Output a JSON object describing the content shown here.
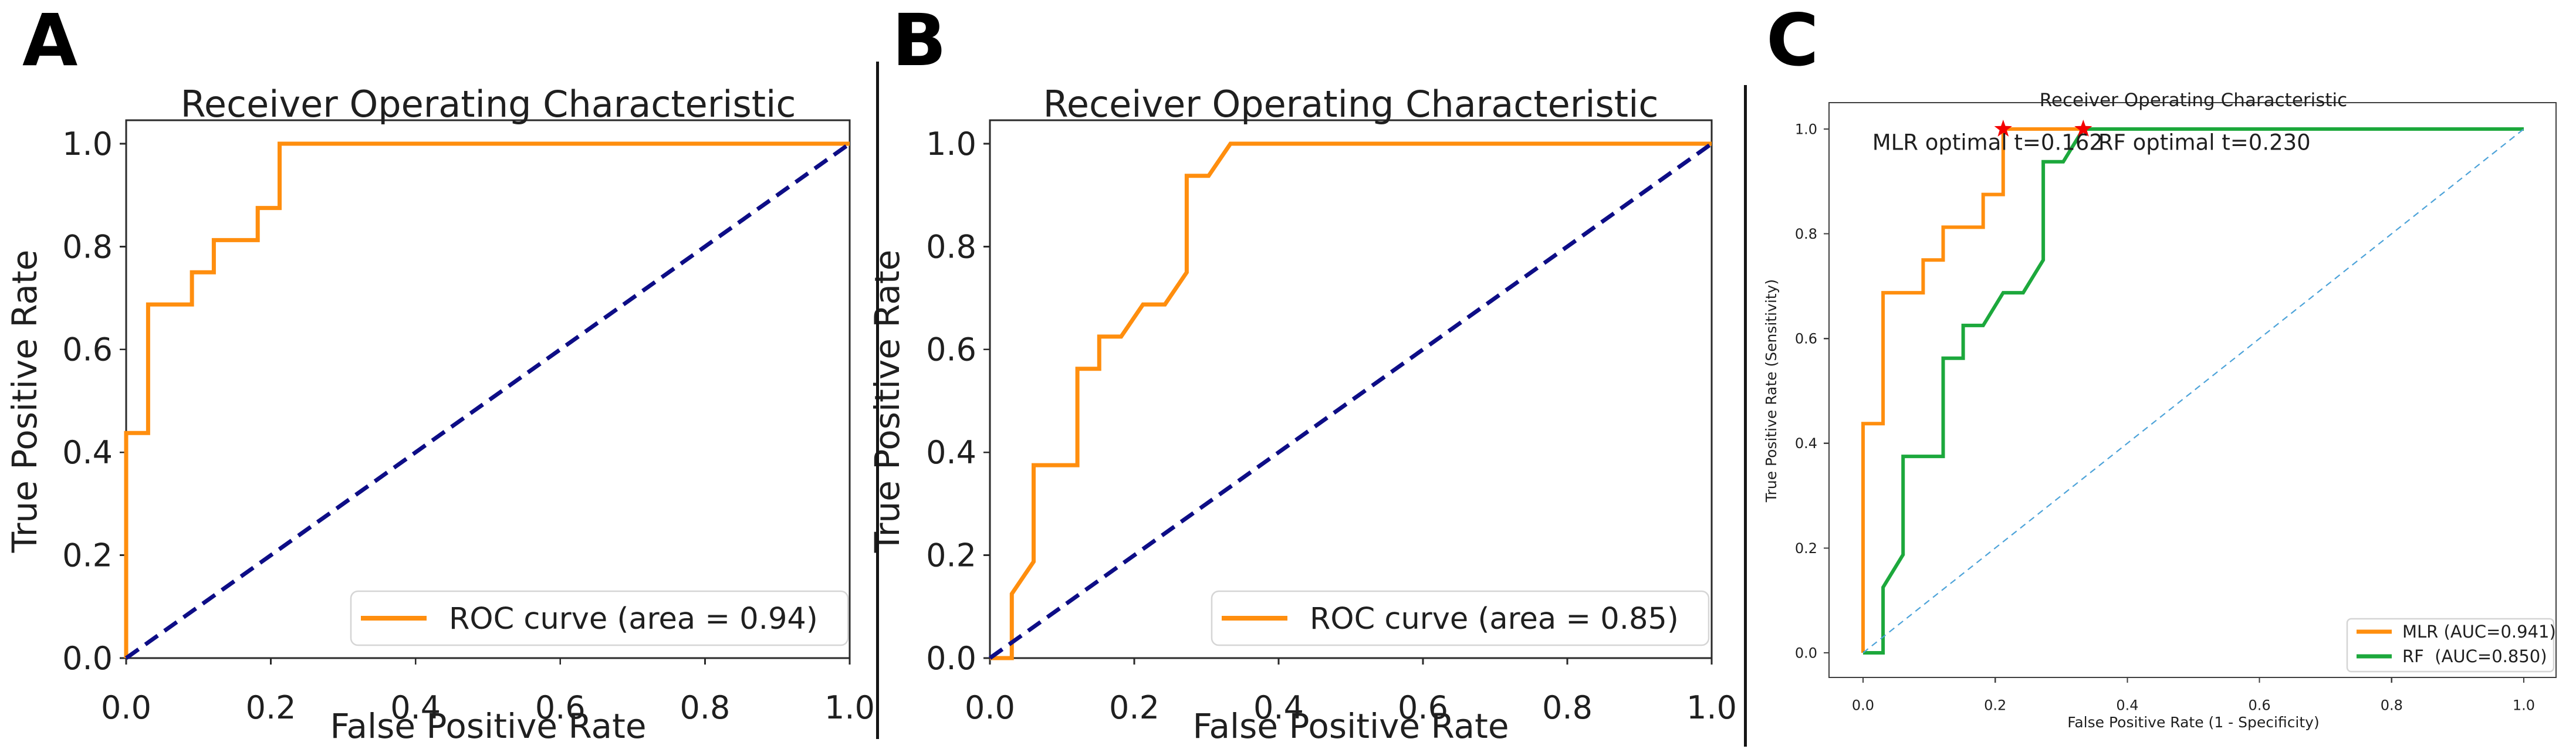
{
  "figure": {
    "background": "#ffffff",
    "text_color": "#1f1f1f",
    "divider_color": "#151515"
  },
  "chart_data": [
    {
      "id": "A",
      "panel_label": "A",
      "type": "line",
      "title": "Receiver Operating Characteristic",
      "xlabel": "False Positive Rate",
      "ylabel": "True Positive Rate",
      "xlim": [
        0.0,
        1.0
      ],
      "ylim": [
        0.0,
        1.05
      ],
      "xticks": [
        0.0,
        0.2,
        0.4,
        0.6,
        0.8,
        1.0
      ],
      "yticks": [
        0.0,
        0.2,
        0.4,
        0.6,
        0.8,
        1.0
      ],
      "grid": false,
      "legend": {
        "position": "lower right",
        "entries": [
          {
            "label": "ROC curve (area = 0.94)",
            "color": "#ff8e0e",
            "style": "solid"
          }
        ]
      },
      "series": [
        {
          "name": "ROC curve (area = 0.94)",
          "color": "#ff8e0e",
          "style": "solid",
          "points": [
            [
              0,
              0
            ],
            [
              0,
              0.4375
            ],
            [
              0.0303,
              0.4375
            ],
            [
              0.0303,
              0.6875
            ],
            [
              0.0909,
              0.6875
            ],
            [
              0.0909,
              0.75
            ],
            [
              0.1212,
              0.75
            ],
            [
              0.1212,
              0.8125
            ],
            [
              0.1818,
              0.8125
            ],
            [
              0.1818,
              0.875
            ],
            [
              0.2121,
              0.875
            ],
            [
              0.2121,
              1.0
            ],
            [
              1.0,
              1.0
            ]
          ]
        },
        {
          "name": "chance-diagonal",
          "color": "#0d0d86",
          "style": "dashed",
          "points": [
            [
              0,
              0
            ],
            [
              1,
              1
            ]
          ]
        }
      ]
    },
    {
      "id": "B",
      "panel_label": "B",
      "type": "line",
      "title": "Receiver Operating Characteristic",
      "xlabel": "False Positive Rate",
      "ylabel": "True Positive Rate",
      "xlim": [
        0.0,
        1.0
      ],
      "ylim": [
        0.0,
        1.05
      ],
      "xticks": [
        0.0,
        0.2,
        0.4,
        0.6,
        0.8,
        1.0
      ],
      "yticks": [
        0.0,
        0.2,
        0.4,
        0.6,
        0.8,
        1.0
      ],
      "grid": false,
      "legend": {
        "position": "lower right",
        "entries": [
          {
            "label": "ROC curve (area = 0.85)",
            "color": "#ff8e0e",
            "style": "solid"
          }
        ]
      },
      "series": [
        {
          "name": "ROC curve (area = 0.85)",
          "color": "#ff8e0e",
          "style": "solid",
          "points": [
            [
              0,
              0
            ],
            [
              0.0303,
              0
            ],
            [
              0.0303,
              0.125
            ],
            [
              0.0606,
              0.1875
            ],
            [
              0.0606,
              0.375
            ],
            [
              0.1212,
              0.375
            ],
            [
              0.1212,
              0.5625
            ],
            [
              0.1515,
              0.5625
            ],
            [
              0.1515,
              0.625
            ],
            [
              0.1818,
              0.625
            ],
            [
              0.2121,
              0.6875
            ],
            [
              0.2424,
              0.6875
            ],
            [
              0.2727,
              0.75
            ],
            [
              0.2727,
              0.9375
            ],
            [
              0.303,
              0.9375
            ],
            [
              0.3333,
              1.0
            ],
            [
              1.0,
              1.0
            ]
          ]
        },
        {
          "name": "chance-diagonal",
          "color": "#0d0d86",
          "style": "dashed",
          "points": [
            [
              0,
              0
            ],
            [
              1,
              1
            ]
          ]
        }
      ]
    },
    {
      "id": "C",
      "panel_label": "C",
      "type": "line",
      "title": "Receiver Operating Characteristic",
      "xlabel": "False Positive Rate (1 - Specificity)",
      "ylabel": "True Positive Rate (Sensitivity)",
      "xlim": [
        0.0,
        1.0
      ],
      "ylim": [
        0.0,
        1.0
      ],
      "xticks": [
        0.0,
        0.2,
        0.4,
        0.6,
        0.8,
        1.0
      ],
      "yticks": [
        0.0,
        0.2,
        0.4,
        0.6,
        0.8,
        1.0
      ],
      "grid": false,
      "legend": {
        "position": "lower right",
        "entries": [
          {
            "label": "MLR (AUC=0.941)",
            "color": "#ff8e0e",
            "style": "solid"
          },
          {
            "label": "RF  (AUC=0.850)",
            "color": "#1ca83c",
            "style": "solid"
          }
        ]
      },
      "series": [
        {
          "name": "MLR (AUC=0.941)",
          "color": "#ff8e0e",
          "style": "solid",
          "points": [
            [
              0,
              0
            ],
            [
              0,
              0.4375
            ],
            [
              0.0303,
              0.4375
            ],
            [
              0.0303,
              0.6875
            ],
            [
              0.0909,
              0.6875
            ],
            [
              0.0909,
              0.75
            ],
            [
              0.1212,
              0.75
            ],
            [
              0.1212,
              0.8125
            ],
            [
              0.1818,
              0.8125
            ],
            [
              0.1818,
              0.875
            ],
            [
              0.2121,
              0.875
            ],
            [
              0.2121,
              1.0
            ],
            [
              1.0,
              1.0
            ]
          ]
        },
        {
          "name": "RF  (AUC=0.850)",
          "color": "#1ca83c",
          "style": "solid",
          "points": [
            [
              0,
              0
            ],
            [
              0.0303,
              0
            ],
            [
              0.0303,
              0.125
            ],
            [
              0.0606,
              0.1875
            ],
            [
              0.0606,
              0.375
            ],
            [
              0.1212,
              0.375
            ],
            [
              0.1212,
              0.5625
            ],
            [
              0.1515,
              0.5625
            ],
            [
              0.1515,
              0.625
            ],
            [
              0.1818,
              0.625
            ],
            [
              0.2121,
              0.6875
            ],
            [
              0.2424,
              0.6875
            ],
            [
              0.2727,
              0.75
            ],
            [
              0.2727,
              0.9375
            ],
            [
              0.303,
              0.9375
            ],
            [
              0.3333,
              1.0
            ],
            [
              1.0,
              1.0
            ]
          ]
        },
        {
          "name": "chance-diagonal",
          "color": "#4da3d9",
          "style": "dashed-thin",
          "points": [
            [
              0,
              0
            ],
            [
              1,
              1
            ]
          ]
        }
      ],
      "annotations": [
        {
          "text": "MLR optimal t=0.162",
          "x": 0.014,
          "y": 0.96
        },
        {
          "text": "RF optimal t=0.230",
          "x": 0.356,
          "y": 0.96
        }
      ],
      "markers": [
        {
          "shape": "star",
          "color": "#f40000",
          "x": 0.2121,
          "y": 1.0
        },
        {
          "shape": "star",
          "color": "#f40000",
          "x": 0.3333,
          "y": 1.0
        }
      ]
    }
  ]
}
